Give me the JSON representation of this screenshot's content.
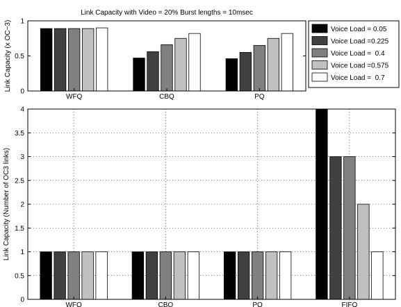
{
  "chart_data": [
    {
      "type": "bar",
      "title": "Link Capacity with Video = 20%  Burst lengths = 10msec",
      "xlabel": "",
      "ylabel": "Link Capacity (x OC−3)",
      "categories": [
        "WFQ",
        "CBQ",
        "PQ"
      ],
      "ylim": [
        0,
        1
      ],
      "yticks": [
        "0",
        "0.5",
        "1"
      ],
      "grid": false,
      "legend": "outside-right",
      "series": [
        {
          "name": "Voice Load = 0.05",
          "color": "#000000",
          "values": [
            0.89,
            0.47,
            0.46
          ]
        },
        {
          "name": "Voice Load =0.225",
          "color": "#404040",
          "values": [
            0.89,
            0.56,
            0.55
          ]
        },
        {
          "name": "Voice Load =  0.4",
          "color": "#808080",
          "values": [
            0.89,
            0.66,
            0.65
          ]
        },
        {
          "name": "Voice Load =0.575",
          "color": "#c0c0c0",
          "values": [
            0.89,
            0.75,
            0.75
          ]
        },
        {
          "name": "Voice Load =  0.7",
          "color": "#ffffff",
          "values": [
            0.9,
            0.82,
            0.82
          ]
        }
      ]
    },
    {
      "type": "bar",
      "title": "",
      "xlabel": "",
      "ylabel": "Link Capacity (Number of OC3 links)",
      "categories": [
        "WFQ",
        "CBQ",
        "PQ",
        "FIFO"
      ],
      "ylim": [
        0,
        4
      ],
      "yticks": [
        "0",
        "0.5",
        "1",
        "1.5",
        "2",
        "2.5",
        "3",
        "3.5",
        "4"
      ],
      "grid": true,
      "series": [
        {
          "name": "Voice Load = 0.05",
          "color": "#000000",
          "values": [
            1,
            1,
            1,
            4
          ]
        },
        {
          "name": "Voice Load =0.225",
          "color": "#404040",
          "values": [
            1,
            1,
            1,
            3
          ]
        },
        {
          "name": "Voice Load =  0.4",
          "color": "#808080",
          "values": [
            1,
            1,
            1,
            3
          ]
        },
        {
          "name": "Voice Load =0.575",
          "color": "#c0c0c0",
          "values": [
            1,
            1,
            1,
            2
          ]
        },
        {
          "name": "Voice Load =  0.7",
          "color": "#ffffff",
          "values": [
            1,
            1,
            1,
            1
          ]
        }
      ]
    }
  ]
}
